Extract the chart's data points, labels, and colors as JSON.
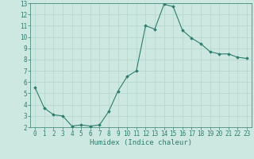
{
  "x": [
    0,
    1,
    2,
    3,
    4,
    5,
    6,
    7,
    8,
    9,
    10,
    11,
    12,
    13,
    14,
    15,
    16,
    17,
    18,
    19,
    20,
    21,
    22,
    23
  ],
  "y": [
    5.5,
    3.7,
    3.1,
    3.0,
    2.1,
    2.2,
    2.1,
    2.2,
    3.4,
    5.2,
    6.5,
    7.0,
    11.0,
    10.7,
    12.9,
    12.7,
    10.6,
    9.9,
    9.4,
    8.7,
    8.5,
    8.5,
    8.2,
    8.1
  ],
  "line_color": "#2e7d6e",
  "marker": "D",
  "marker_size": 1.8,
  "bg_color": "#cce8e0",
  "grid_color": "#b8d8d0",
  "xlabel": "Humidex (Indice chaleur)",
  "xlim": [
    -0.5,
    23.5
  ],
  "ylim": [
    2,
    13
  ],
  "yticks": [
    2,
    3,
    4,
    5,
    6,
    7,
    8,
    9,
    10,
    11,
    12,
    13
  ],
  "xticks": [
    0,
    1,
    2,
    3,
    4,
    5,
    6,
    7,
    8,
    9,
    10,
    11,
    12,
    13,
    14,
    15,
    16,
    17,
    18,
    19,
    20,
    21,
    22,
    23
  ],
  "tick_color": "#2e7d6e",
  "label_color": "#2e7d6e",
  "font_size_tick": 5.5,
  "font_size_label": 6.5
}
